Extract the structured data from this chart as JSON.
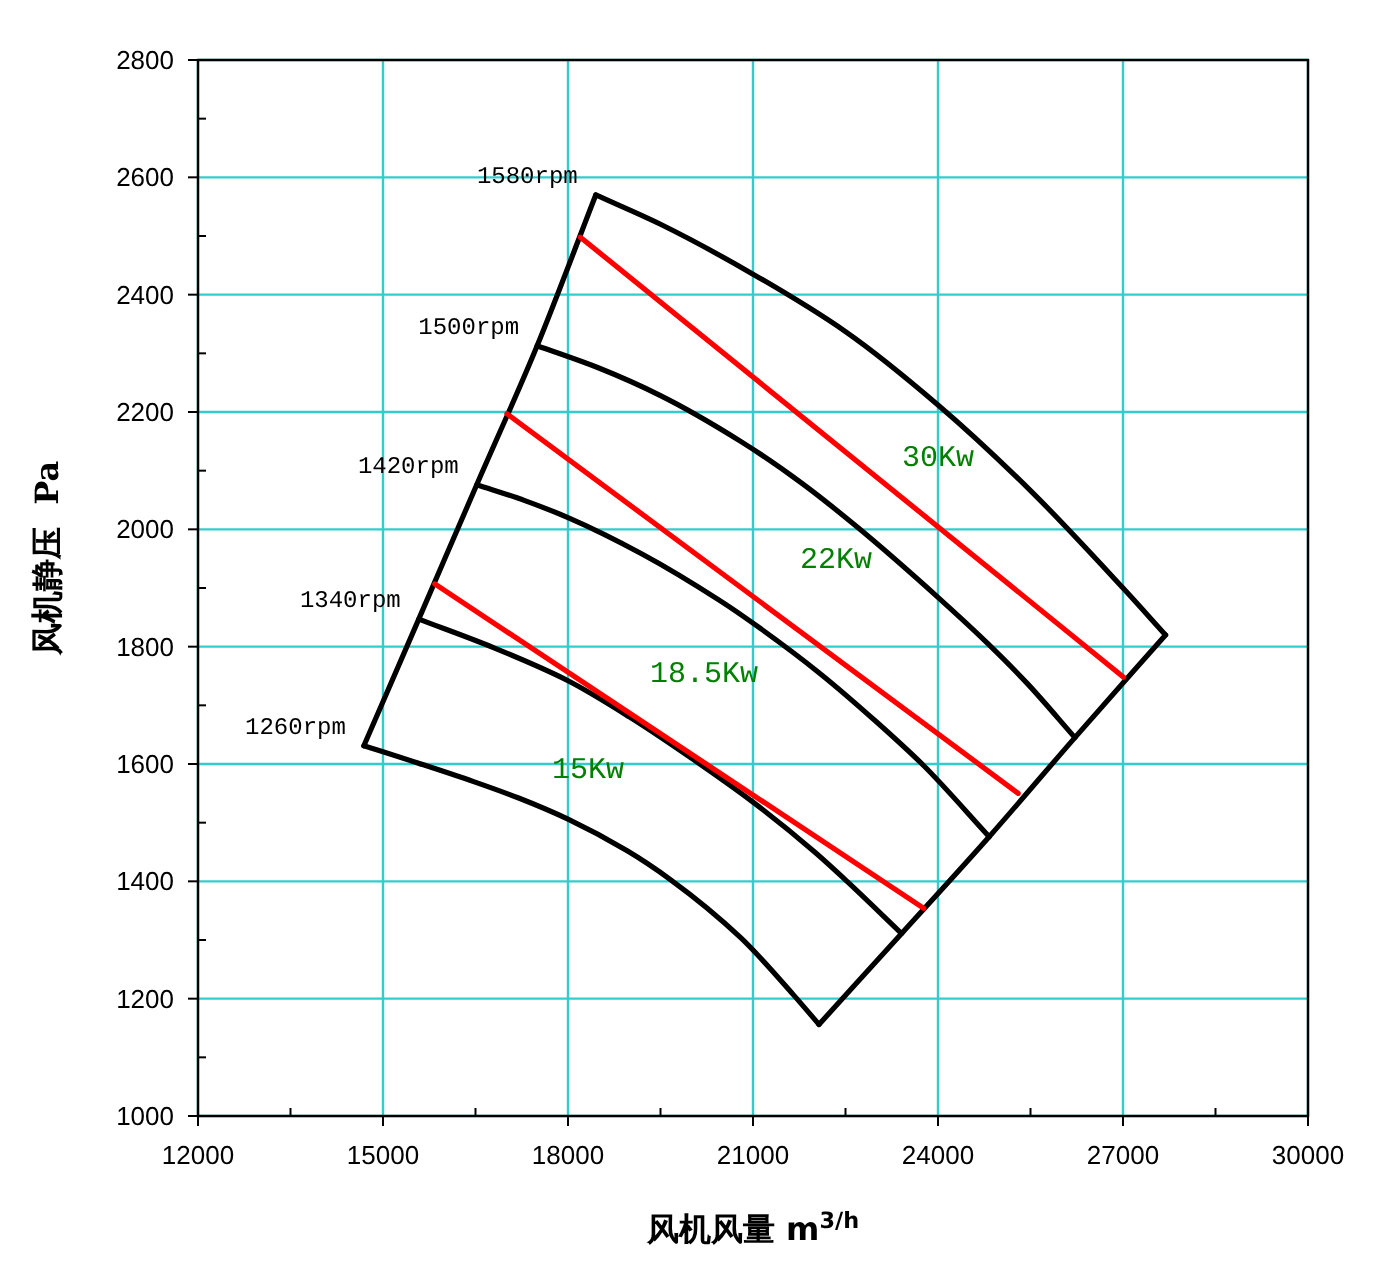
{
  "chart_data": {
    "type": "line",
    "xlabel": "风机风量 m$^{3/h}$",
    "ylabel": "风机静压  Pa",
    "xlim": [
      12000,
      30000
    ],
    "ylim": [
      1000,
      2800
    ],
    "xticks": [
      12000,
      {
        "value": 13500,
        "label": null
      },
      15000,
      {
        "value": 16500,
        "label": null
      },
      18000,
      {
        "value": 19500,
        "label": null
      },
      21000,
      {
        "value": 22500,
        "label": null
      },
      24000,
      {
        "value": 25500,
        "label": null
      },
      27000,
      {
        "value": 28500,
        "label": null
      },
      30000
    ],
    "yticks": [
      1000,
      {
        "value": 1100,
        "label": null
      },
      1200,
      {
        "value": 1300,
        "label": null
      },
      1400,
      {
        "value": 1500,
        "label": null
      },
      1600,
      {
        "value": 1700,
        "label": null
      },
      1800,
      {
        "value": 1900,
        "label": null
      },
      2000,
      {
        "value": 2100,
        "label": null
      },
      2200,
      {
        "value": 2300,
        "label": null
      },
      2400,
      {
        "value": 2500,
        "label": null
      },
      2600,
      {
        "value": 2700,
        "label": null
      },
      2800
    ],
    "grid": true,
    "series": [
      {
        "name": "1580rpm",
        "color": "#000000",
        "x": [
          18450,
          19500,
          21000,
          22500,
          24000,
          25500,
          27000,
          27690
        ],
        "values": [
          2570,
          2520,
          2435,
          2337,
          2212,
          2066,
          1900,
          1820
        ]
      },
      {
        "name": "1500rpm",
        "color": "#000000",
        "x": [
          17500,
          18500,
          19500,
          20800,
          21800,
          22700,
          24000,
          24800,
          25450,
          26220
        ],
        "values": [
          2313,
          2275,
          2228,
          2150,
          2078,
          2003,
          1884,
          1806,
          1737,
          1645
        ]
      },
      {
        "name": "1420rpm",
        "color": "#000000",
        "x": [
          16520,
          17300,
          18000,
          19200,
          20470,
          21120,
          22090,
          23000,
          23770,
          24830
        ],
        "values": [
          2076,
          2049,
          2020,
          1958,
          1878,
          1831,
          1754,
          1672,
          1597,
          1476
        ]
      },
      {
        "name": "1340rpm",
        "color": "#000000",
        "x": [
          15580,
          16800,
          18000,
          19000,
          20000,
          21000,
          22000,
          22525,
          23410
        ],
        "values": [
          1847,
          1798,
          1742,
          1680,
          1610,
          1535,
          1450,
          1400,
          1311
        ]
      },
      {
        "name": "1260rpm",
        "color": "#000000",
        "x": [
          14690,
          15000,
          15500,
          16470,
          17200,
          18000,
          18960,
          19660,
          20800,
          21660,
          22070
        ],
        "values": [
          1631,
          1621,
          1604,
          1570,
          1542,
          1506,
          1452,
          1403,
          1304,
          1206,
          1156
        ]
      },
      {
        "color": "#000000",
        "x": [
          14690,
          15580,
          16520,
          17500,
          18450
        ],
        "values": [
          1631,
          1847,
          2076,
          2313,
          2570
        ]
      },
      {
        "color": "#000000",
        "x": [
          22070,
          23410,
          24830,
          26220,
          27690
        ],
        "values": [
          1156,
          1311,
          1476,
          1645,
          1820
        ]
      },
      {
        "color": "#ff0000",
        "x": [
          15840,
          23770
        ],
        "values": [
          1907,
          1354
        ]
      },
      {
        "color": "#ff0000",
        "x": [
          17010,
          25300
        ],
        "values": [
          2197,
          1550
        ]
      },
      {
        "color": "#ff0000",
        "x": [
          18200,
          27010
        ],
        "values": [
          2498,
          1748
        ]
      }
    ],
    "annotations": [
      "30Kw",
      "22Kw",
      "18.5Kw",
      "15Kw"
    ]
  }
}
